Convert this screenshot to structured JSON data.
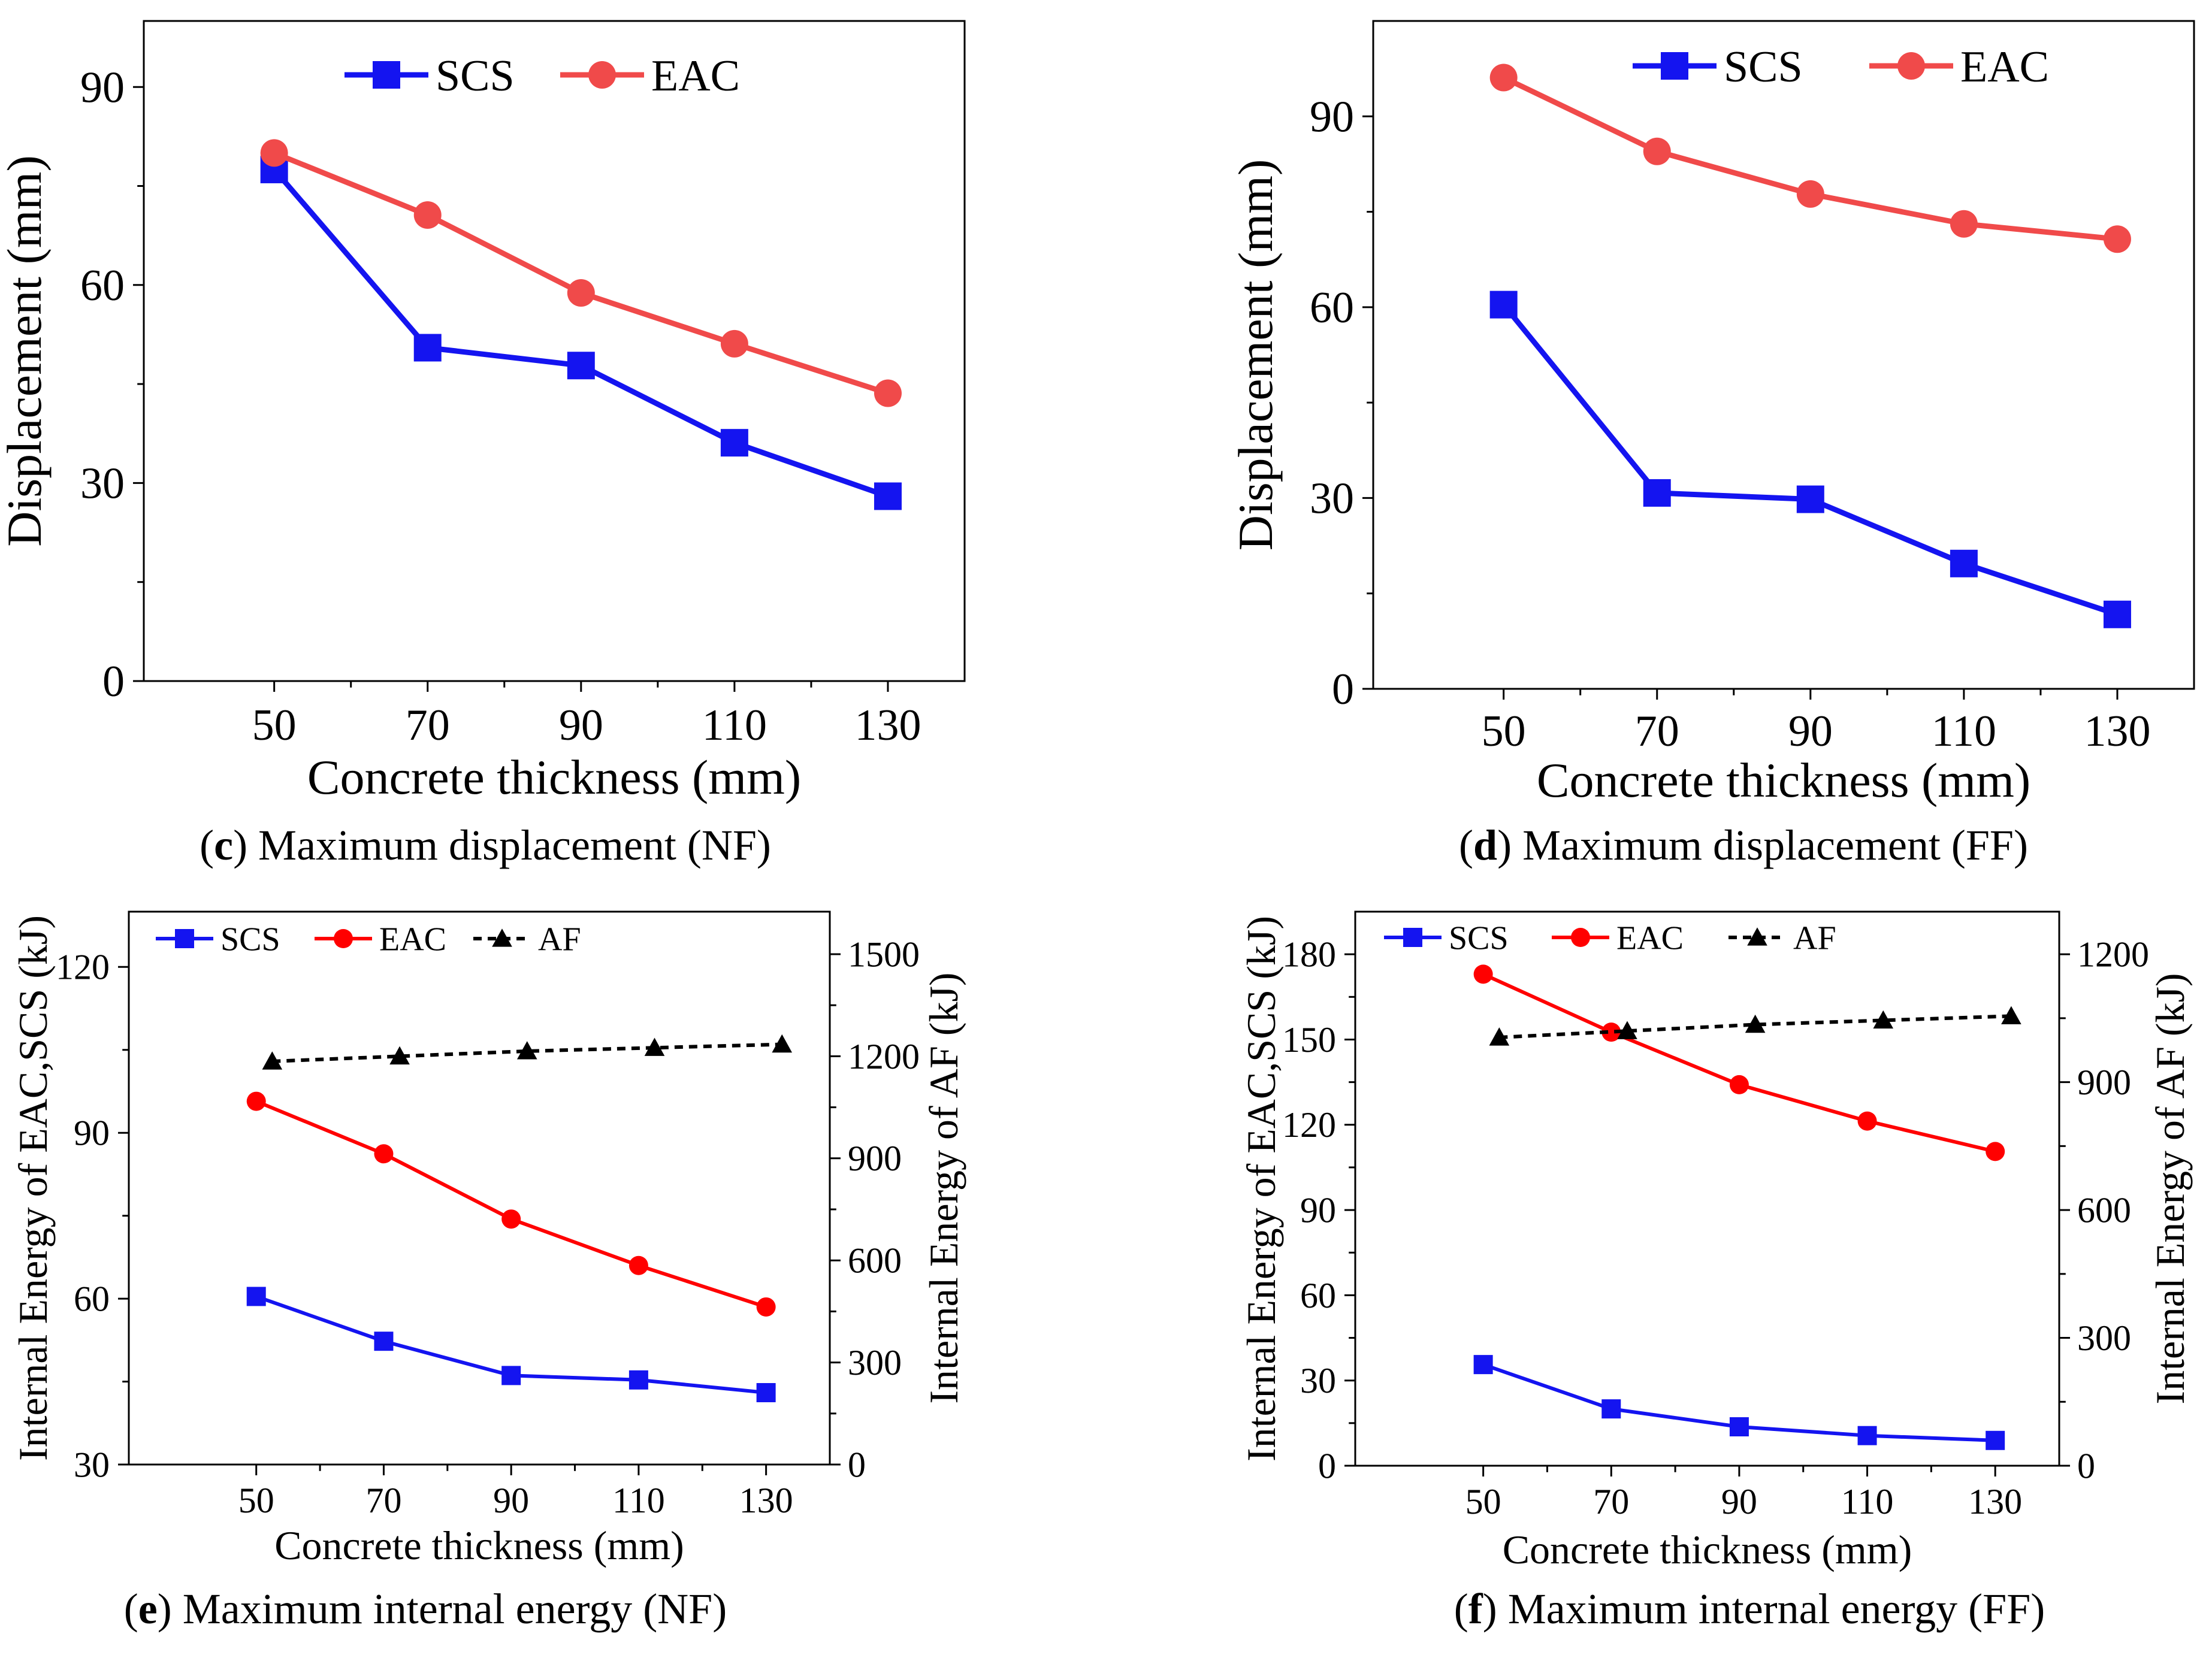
{
  "colors": {
    "SCS": "#1414f0",
    "EAC": "#f04a4a",
    "EAC_dark": "#ff0000",
    "AF": "#000000"
  },
  "chart_data": [
    {
      "type": "line",
      "panel_letter": "c",
      "caption": "Maximum displacement (NF)",
      "x": [
        50,
        70,
        90,
        110,
        130
      ],
      "xlabel": "Concrete thickness (mm)",
      "ylabel": "Displacement (mm)",
      "xlim": [
        33,
        140
      ],
      "ylim": [
        0,
        100
      ],
      "xticks": [
        "50",
        "70",
        "90",
        "110",
        "130"
      ],
      "yticks": [
        0,
        30,
        60,
        90
      ],
      "series": [
        {
          "name": "SCS",
          "marker": "square",
          "values": [
            77.5,
            50.5,
            47.8,
            36.1,
            28.0
          ]
        },
        {
          "name": "EAC",
          "marker": "circle",
          "values": [
            80.0,
            70.6,
            58.8,
            51.1,
            43.6
          ]
        }
      ],
      "legend": "top-center"
    },
    {
      "type": "line",
      "panel_letter": "d",
      "caption": "Maximum displacement (FF)",
      "x": [
        50,
        70,
        90,
        110,
        130
      ],
      "xlabel": "Concrete thickness (mm)",
      "ylabel": "Displacement (mm)",
      "xlim": [
        33,
        140
      ],
      "ylim": [
        0,
        105
      ],
      "xticks": [
        "50",
        "70",
        "90",
        "110",
        "130"
      ],
      "yticks": [
        0,
        30,
        60,
        90
      ],
      "series": [
        {
          "name": "SCS",
          "marker": "square",
          "values": [
            60.4,
            30.8,
            29.8,
            19.7,
            11.7
          ]
        },
        {
          "name": "EAC",
          "marker": "circle",
          "values": [
            96.1,
            84.5,
            77.8,
            73.1,
            70.7
          ]
        }
      ],
      "legend": "top-center"
    },
    {
      "type": "line",
      "panel_letter": "e",
      "caption": "Maximum internal energy (NF)",
      "x": [
        50,
        70,
        90,
        110,
        130
      ],
      "xlabel": "Concrete thickness (mm)",
      "ylabel": "Internal Energy of EAC,SCS (kJ)",
      "y2label": "Internal Energy of AF (kJ)",
      "xlim": [
        30,
        140
      ],
      "ylim": [
        30,
        130
      ],
      "y2lim": [
        0,
        1625
      ],
      "xticks": [
        "50",
        "70",
        "90",
        "110",
        "130"
      ],
      "yticks": [
        30,
        60,
        90,
        120
      ],
      "y2ticks": [
        0,
        300,
        600,
        900,
        1200,
        1500
      ],
      "series": [
        {
          "name": "SCS",
          "marker": "square",
          "axis": "left",
          "x": [
            50,
            70,
            90,
            110,
            130
          ],
          "values": [
            60.4,
            52.3,
            46.1,
            45.3,
            43.0
          ]
        },
        {
          "name": "EAC",
          "marker": "circle",
          "axis": "left",
          "x": [
            50,
            70,
            90,
            110,
            130
          ],
          "values": [
            95.7,
            86.2,
            74.4,
            66.0,
            58.5
          ]
        },
        {
          "name": "AF",
          "marker": "triangle",
          "axis": "right",
          "dashed": true,
          "x": [
            52.5,
            72.5,
            92.5,
            112.5,
            132.5
          ],
          "values": [
            1185,
            1200,
            1215,
            1225,
            1235
          ]
        }
      ],
      "legend": "top-left"
    },
    {
      "type": "line",
      "panel_letter": "f",
      "caption": "Maximum internal energy (FF)",
      "x": [
        50,
        70,
        90,
        110,
        130
      ],
      "xlabel": "Concrete thickness (mm)",
      "ylabel": "Internal Energy of EAC,SCS (kJ)",
      "y2label": "Internal Energy of AF (kJ)",
      "xlim": [
        30,
        140
      ],
      "ylim": [
        0,
        195
      ],
      "y2lim": [
        0,
        1300
      ],
      "xticks": [
        "50",
        "70",
        "90",
        "110",
        "130"
      ],
      "yticks": [
        0,
        30,
        60,
        90,
        120,
        150,
        180
      ],
      "y2ticks": [
        0,
        300,
        600,
        900,
        1200
      ],
      "series": [
        {
          "name": "SCS",
          "marker": "square",
          "axis": "left",
          "x": [
            50,
            70,
            90,
            110,
            130
          ],
          "values": [
            35.6,
            20.0,
            13.7,
            10.6,
            8.9
          ]
        },
        {
          "name": "EAC",
          "marker": "circle",
          "axis": "left",
          "x": [
            50,
            70,
            90,
            110,
            130
          ],
          "values": [
            173.0,
            152.6,
            134.1,
            121.3,
            110.6
          ]
        },
        {
          "name": "AF",
          "marker": "triangle",
          "axis": "right",
          "dashed": true,
          "x": [
            52.5,
            72.5,
            92.5,
            112.5,
            132.5
          ],
          "values": [
            1005,
            1020,
            1035,
            1045,
            1055
          ]
        }
      ],
      "legend": "top-left"
    }
  ]
}
